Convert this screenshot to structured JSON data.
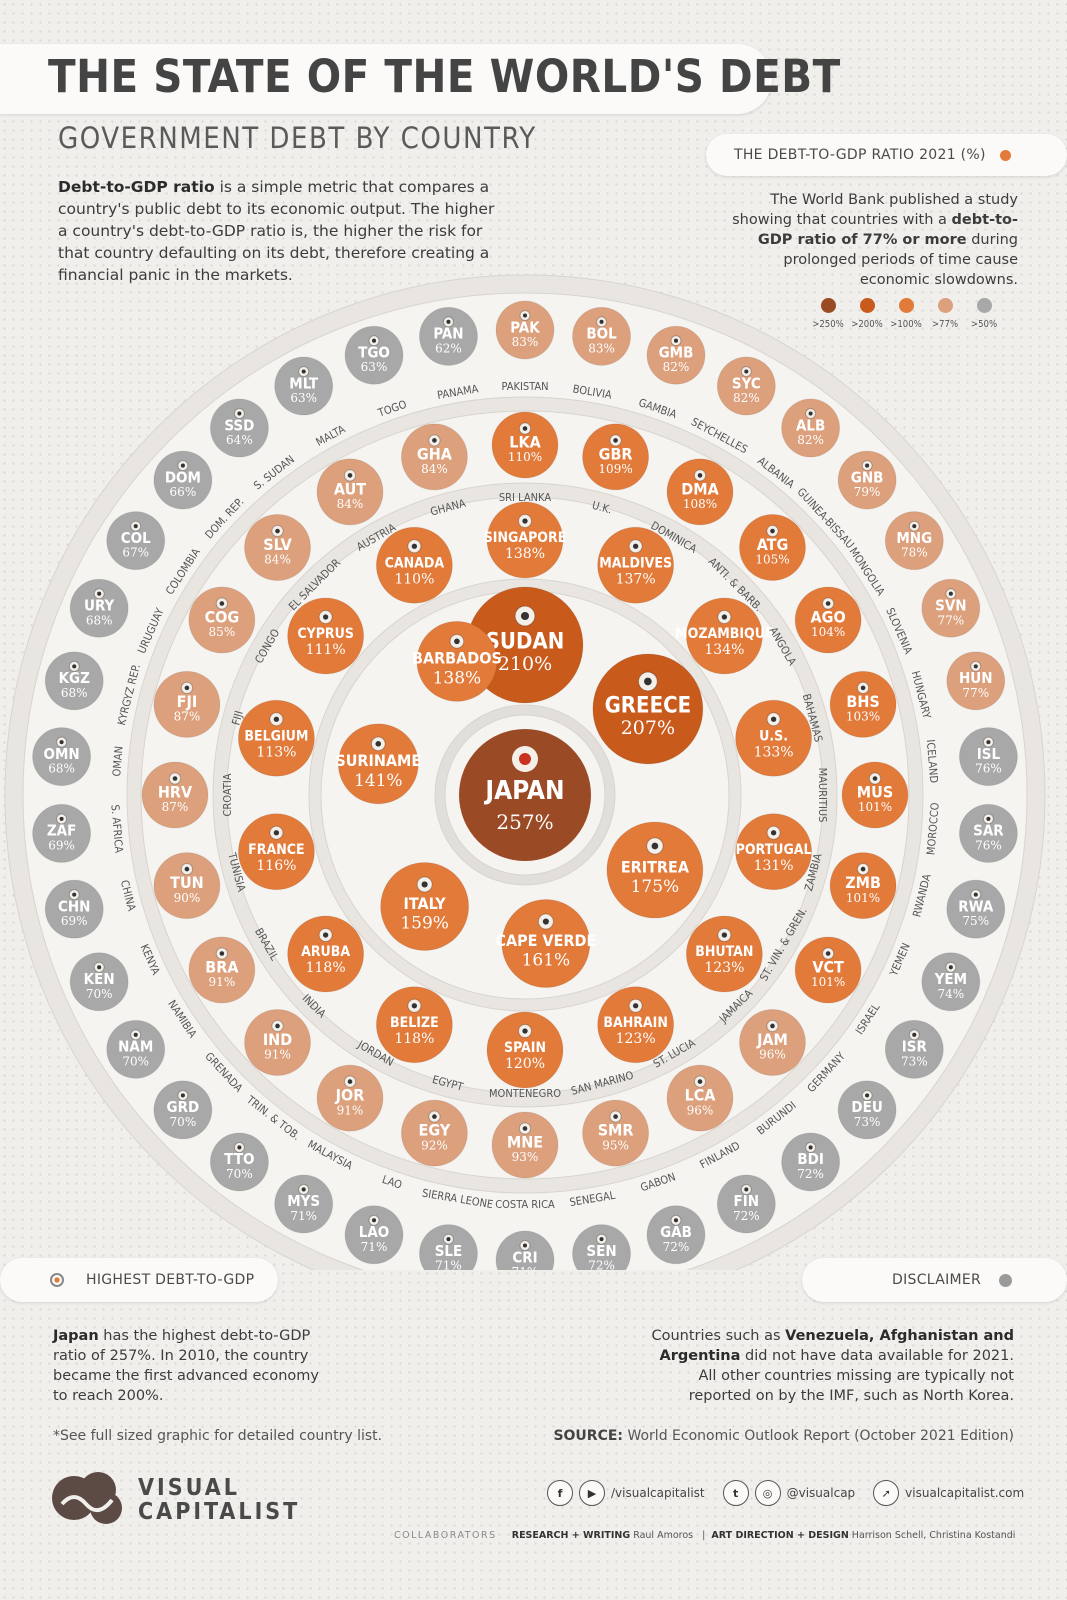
{
  "header": {
    "title": "THE STATE OF THE WORLD'S DEBT",
    "subtitle": "GOVERNMENT DEBT BY COUNTRY"
  },
  "intro": {
    "bold": "Debt-to-GDP ratio",
    "text": " is a simple metric that compares a country's public debt to its economic output. The higher a country's debt-to-GDP ratio is, the higher the risk for that country defaulting on its debt, therefore creating a financial panic in the markets."
  },
  "ratio_pill": {
    "label": "THE DEBT-TO-GDP RATIO 2021 (%)"
  },
  "world_bank": {
    "text1": "The World Bank published a study showing that countries with a ",
    "bold": "debt-to-GDP ratio of 77% or more",
    "text2": " during prolonged periods of time cause economic slowdowns."
  },
  "legend": [
    {
      "label": ">250%",
      "color": "#9a4a24"
    },
    {
      "label": ">200%",
      "color": "#c85a1c"
    },
    {
      "label": ">100%",
      "color": "#e27a3a"
    },
    {
      "label": ">77%",
      "color": "#dca07c"
    },
    {
      "label": ">50%",
      "color": "#a8a8a8"
    }
  ],
  "chart_data": {
    "type": "bubble",
    "title": "THE DEBT-TO-GDP RATIO 2021 (%)",
    "series": [
      {
        "tier": 0,
        "items": [
          {
            "label": "JAPAN",
            "value": 257
          }
        ]
      },
      {
        "tier": 1,
        "items": [
          {
            "label": "SUDAN",
            "value": 210
          },
          {
            "label": "GREECE",
            "value": 207
          },
          {
            "label": "ERITREA",
            "value": 175
          },
          {
            "label": "CAPE VERDE",
            "value": 161
          },
          {
            "label": "ITALY",
            "value": 159
          },
          {
            "label": "SURINAME",
            "value": 141
          },
          {
            "label": "BARBADOS",
            "value": 138
          }
        ]
      },
      {
        "tier": 2,
        "items": [
          {
            "label": "SINGAPORE",
            "value": 138
          },
          {
            "label": "MALDIVES",
            "value": 137
          },
          {
            "label": "MOZAMBIQUE",
            "value": 134
          },
          {
            "label": "U.S.",
            "value": 133
          },
          {
            "label": "PORTUGAL",
            "value": 131
          },
          {
            "label": "BHUTAN",
            "value": 123
          },
          {
            "label": "BAHRAIN",
            "value": 123
          },
          {
            "label": "SPAIN",
            "value": 120
          },
          {
            "label": "BELIZE",
            "value": 118
          },
          {
            "label": "ARUBA",
            "value": 118
          },
          {
            "label": "FRANCE",
            "value": 116
          },
          {
            "label": "BELGIUM",
            "value": 113
          },
          {
            "label": "CYPRUS",
            "value": 111
          },
          {
            "label": "CANADA",
            "value": 110
          }
        ]
      },
      {
        "tier": 3,
        "items": [
          {
            "code": "LKA",
            "name": "SRI LANKA",
            "value": 110
          },
          {
            "code": "GBR",
            "name": "U.K.",
            "value": 109
          },
          {
            "code": "DMA",
            "name": "DOMINICA",
            "value": 108
          },
          {
            "code": "ATG",
            "name": "ANTI. & BARB.",
            "value": 105
          },
          {
            "code": "AGO",
            "name": "ANGOLA",
            "value": 104
          },
          {
            "code": "BHS",
            "name": "BAHAMAS",
            "value": 103
          },
          {
            "code": "MUS",
            "name": "MAURITIUS",
            "value": 101
          },
          {
            "code": "ZMB",
            "name": "ZAMBIA",
            "value": 101
          },
          {
            "code": "VCT",
            "name": "ST. VIN. & GREN.",
            "value": 101
          },
          {
            "code": "JAM",
            "name": "JAMAICA",
            "value": 96
          },
          {
            "code": "LCA",
            "name": "ST. LUCIA",
            "value": 96
          },
          {
            "code": "SMR",
            "name": "SAN MARINO",
            "value": 95
          },
          {
            "code": "MNE",
            "name": "MONTENEGRO",
            "value": 93
          },
          {
            "code": "EGY",
            "name": "EGYPT",
            "value": 92
          },
          {
            "code": "JOR",
            "name": "JORDAN",
            "value": 91
          },
          {
            "code": "IND",
            "name": "INDIA",
            "value": 91
          },
          {
            "code": "BRA",
            "name": "BRAZIL",
            "value": 91
          },
          {
            "code": "TUN",
            "name": "TUNISIA",
            "value": 90
          },
          {
            "code": "HRV",
            "name": "CROATIA",
            "value": 87
          },
          {
            "code": "FJI",
            "name": "FIJI",
            "value": 87
          },
          {
            "code": "COG",
            "name": "CONGO",
            "value": 85
          },
          {
            "code": "SLV",
            "name": "EL SALVADOR",
            "value": 84
          },
          {
            "code": "AUT",
            "name": "AUSTRIA",
            "value": 84
          },
          {
            "code": "GHA",
            "name": "GHANA",
            "value": 84
          }
        ]
      },
      {
        "tier": 4,
        "items": [
          {
            "code": "PAK",
            "name": "PAKISTAN",
            "value": 83
          },
          {
            "code": "BOL",
            "name": "BOLIVIA",
            "value": 83
          },
          {
            "code": "GMB",
            "name": "GAMBIA",
            "value": 82
          },
          {
            "code": "SYC",
            "name": "SEYCHELLES",
            "value": 82
          },
          {
            "code": "ALB",
            "name": "ALBANIA",
            "value": 82
          },
          {
            "code": "GNB",
            "name": "GUINEA-BISSAU",
            "value": 79
          },
          {
            "code": "MNG",
            "name": "MONGOLIA",
            "value": 78
          },
          {
            "code": "SVN",
            "name": "SLOVENIA",
            "value": 77
          },
          {
            "code": "HUN",
            "name": "HUNGARY",
            "value": 77
          },
          {
            "code": "ISL",
            "name": "ICELAND",
            "value": 76
          },
          {
            "code": "SAR",
            "name": "MOROCCO",
            "value": 76
          },
          {
            "code": "RWA",
            "name": "RWANDA",
            "value": 75
          },
          {
            "code": "YEM",
            "name": "YEMEN",
            "value": 74
          },
          {
            "code": "ISR",
            "name": "ISRAEL",
            "value": 73
          },
          {
            "code": "DEU",
            "name": "GERMANY",
            "value": 73
          },
          {
            "code": "BDI",
            "name": "BURUNDI",
            "value": 72
          },
          {
            "code": "FIN",
            "name": "FINLAND",
            "value": 72
          },
          {
            "code": "GAB",
            "name": "GABON",
            "value": 72
          },
          {
            "code": "SEN",
            "name": "SENEGAL",
            "value": 72
          },
          {
            "code": "CRI",
            "name": "COSTA RICA",
            "value": 71
          },
          {
            "code": "SLE",
            "name": "SIERRA LEONE",
            "value": 71
          },
          {
            "code": "LAO",
            "name": "LAO",
            "value": 71
          },
          {
            "code": "MYS",
            "name": "MALAYSIA",
            "value": 71
          },
          {
            "code": "TTO",
            "name": "TRIN. & TOB.",
            "value": 70
          },
          {
            "code": "GRD",
            "name": "GRENADA",
            "value": 70
          },
          {
            "code": "NAM",
            "name": "NAMIBIA",
            "value": 70
          },
          {
            "code": "KEN",
            "name": "KENYA",
            "value": 70
          },
          {
            "code": "CHN",
            "name": "CHINA",
            "value": 69
          },
          {
            "code": "ZAF",
            "name": "S. AFRICA",
            "value": 69
          },
          {
            "code": "OMN",
            "name": "OMAN",
            "value": 68
          },
          {
            "code": "KGZ",
            "name": "KYRGYZ REP.",
            "value": 68
          },
          {
            "code": "URY",
            "name": "URUGUAY",
            "value": 68
          },
          {
            "code": "COL",
            "name": "COLOMBIA",
            "value": 67
          },
          {
            "code": "DOM",
            "name": "DOM. REP.",
            "value": 66
          },
          {
            "code": "SSD",
            "name": "S. SUDAN",
            "value": 64
          },
          {
            "code": "MLT",
            "name": "MALTA",
            "value": 63
          },
          {
            "code": "TGO",
            "name": "TOGO",
            "value": 63
          },
          {
            "code": "PAN",
            "name": "PANAMA",
            "value": 62
          }
        ]
      }
    ]
  },
  "highest": {
    "pill": "HIGHEST DEBT-TO-GDP",
    "bold": "Japan",
    "text": " has the highest debt-to-GDP ratio of 257%. In 2010, the country became the first advanced economy to reach 200%."
  },
  "disclaimer": {
    "pill": "DISCLAIMER",
    "text1": "Countries such as ",
    "bold": "Venezuela, Afghanistan and Argentina",
    "text2": " did not have data available for 2021. All other countries missing are typically not reported on by the IMF, such as North Korea."
  },
  "footnote": "*See full sized graphic for detailed country list.",
  "source": {
    "label": "SOURCE:",
    "text": " World Economic Outlook Report (October 2021 Edition)"
  },
  "social": {
    "handle1": "/visualcapitalist",
    "handle2": "@visualcap",
    "site": "visualcapitalist.com"
  },
  "logo": {
    "line1": "VISUAL",
    "line2": "CAPITALIST"
  },
  "credits": {
    "label": "COLLABORATORS",
    "research_k": "RESEARCH + WRITING",
    "research_v": "Raul Amoros",
    "design_k": "ART DIRECTION + DESIGN",
    "design_v": "Harrison Schell, Christina Kostandi"
  }
}
